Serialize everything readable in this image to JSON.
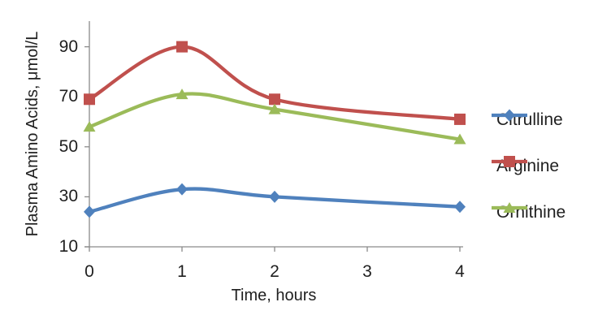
{
  "chart_data": {
    "type": "line",
    "title": "",
    "xlabel": "Time, hours",
    "ylabel": "Plasma Amino Acids, μmol/L",
    "x": [
      0,
      1,
      2,
      4
    ],
    "xticks": [
      0,
      1,
      2,
      3,
      4
    ],
    "yticks": [
      10,
      30,
      50,
      70,
      90
    ],
    "xlim": [
      0,
      4
    ],
    "ylim": [
      10,
      100
    ],
    "grid": false,
    "smoothed_lines": true,
    "legend_position": "right",
    "background_color": "#FFFFFF",
    "axis_color": "#8A8A8A",
    "text_color": "#1F1F1F",
    "series": [
      {
        "name": "Citrulline",
        "marker": "diamond",
        "color": "#4F81BD",
        "values": [
          24,
          33,
          30,
          26
        ]
      },
      {
        "name": "Arginine",
        "marker": "square",
        "color": "#C0504D",
        "values": [
          69,
          90,
          69,
          61
        ]
      },
      {
        "name": "Ornithine",
        "marker": "triangle",
        "color": "#9BBB59",
        "values": [
          58,
          71,
          65,
          53
        ]
      }
    ]
  }
}
